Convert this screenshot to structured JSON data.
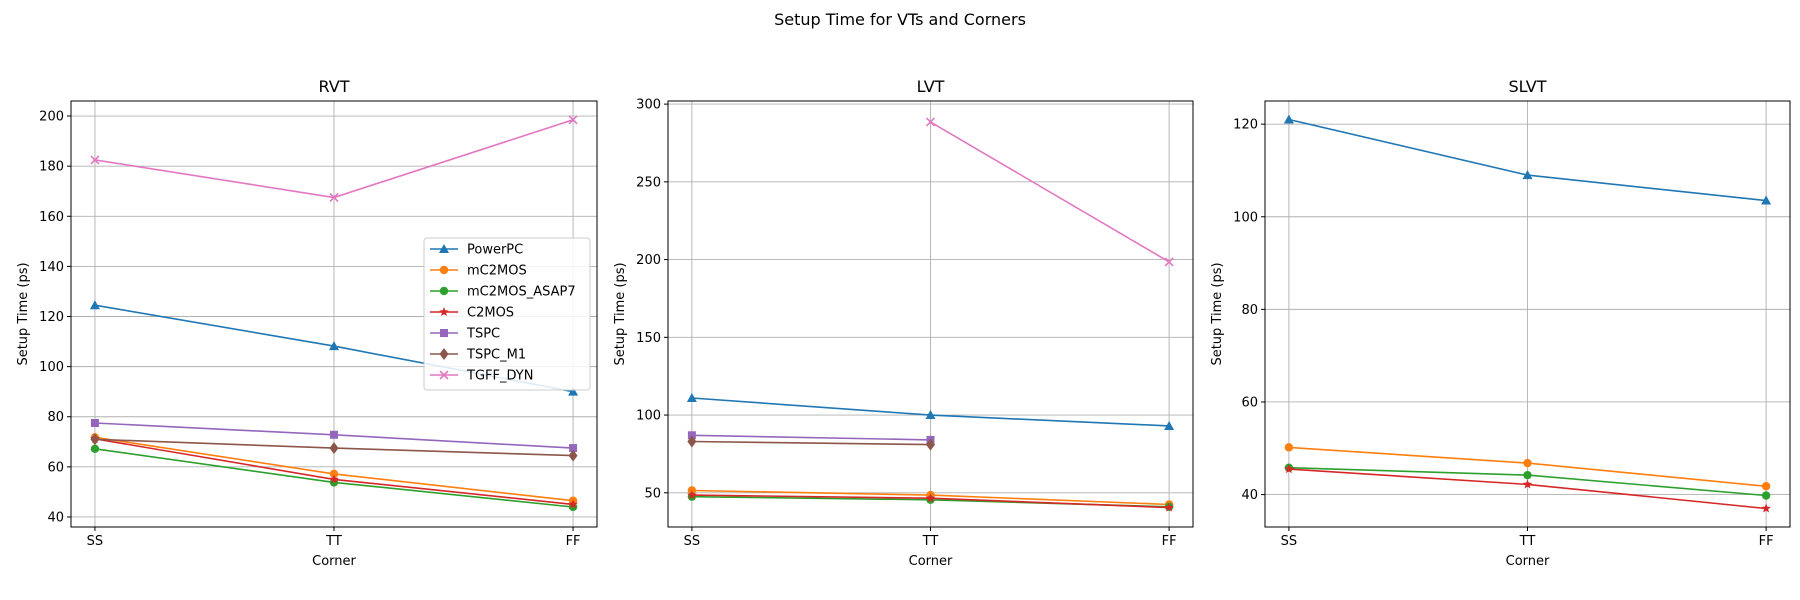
{
  "figure_title": "Setup Time for VTs and Corners",
  "series_styles": [
    {
      "name": "PowerPC",
      "color": "#1f77b4",
      "marker": "triangle"
    },
    {
      "name": "mC2MOS",
      "color": "#ff7f0e",
      "marker": "circle"
    },
    {
      "name": "mC2MOS_ASAP7",
      "color": "#2ca02c",
      "marker": "circle"
    },
    {
      "name": "C2MOS",
      "color": "#d62728",
      "marker": "star"
    },
    {
      "name": "TSPC",
      "color": "#9467bd",
      "marker": "square"
    },
    {
      "name": "TSPC_M1",
      "color": "#8c564b",
      "marker": "diamond"
    },
    {
      "name": "TGFF_DYN",
      "color": "#e377c2",
      "marker": "x"
    }
  ],
  "chart_data": [
    {
      "type": "line",
      "title": "RVT",
      "xlabel": "Corner",
      "ylabel": "Setup Time (ps)",
      "categories": [
        "SS",
        "TT",
        "FF"
      ],
      "ylim": [
        36,
        206
      ],
      "yticks": [
        40,
        60,
        80,
        100,
        120,
        140,
        160,
        180,
        200
      ],
      "grid": true,
      "legend": "center-right",
      "series": [
        {
          "name": "PowerPC",
          "values": [
            124.5,
            108.2,
            90.0
          ]
        },
        {
          "name": "mC2MOS",
          "values": [
            71.8,
            57.2,
            46.5
          ]
        },
        {
          "name": "mC2MOS_ASAP7",
          "values": [
            67.2,
            53.8,
            44.0
          ]
        },
        {
          "name": "C2MOS",
          "values": [
            71.2,
            55.0,
            45.0
          ]
        },
        {
          "name": "TSPC",
          "values": [
            77.5,
            72.8,
            67.5
          ]
        },
        {
          "name": "TSPC_M1",
          "values": [
            71.0,
            67.5,
            64.5
          ]
        },
        {
          "name": "TGFF_DYN",
          "values": [
            182.5,
            167.5,
            198.5
          ]
        }
      ]
    },
    {
      "type": "line",
      "title": "LVT",
      "xlabel": "Corner",
      "ylabel": "Setup Time (ps)",
      "categories": [
        "SS",
        "TT",
        "FF"
      ],
      "ylim": [
        28,
        302
      ],
      "yticks": [
        50,
        100,
        150,
        200,
        250,
        300
      ],
      "grid": true,
      "series": [
        {
          "name": "PowerPC",
          "values": [
            111.0,
            100.0,
            93.0
          ]
        },
        {
          "name": "mC2MOS",
          "values": [
            51.5,
            48.5,
            42.5
          ]
        },
        {
          "name": "mC2MOS_ASAP7",
          "values": [
            47.5,
            45.5,
            41.0
          ]
        },
        {
          "name": "C2MOS",
          "values": [
            48.5,
            46.5,
            40.5
          ]
        },
        {
          "name": "TSPC",
          "values": [
            87.0,
            84.0,
            null
          ]
        },
        {
          "name": "TSPC_M1",
          "values": [
            83.0,
            81.0,
            null
          ]
        },
        {
          "name": "TGFF_DYN",
          "values": [
            null,
            288.5,
            198.5
          ]
        }
      ]
    },
    {
      "type": "line",
      "title": "SLVT",
      "xlabel": "Corner",
      "ylabel": "Setup Time (ps)",
      "categories": [
        "SS",
        "TT",
        "FF"
      ],
      "ylim": [
        33,
        125
      ],
      "yticks": [
        40,
        60,
        80,
        100,
        120
      ],
      "grid": true,
      "series": [
        {
          "name": "PowerPC",
          "values": [
            121.0,
            109.0,
            103.5
          ]
        },
        {
          "name": "mC2MOS",
          "values": [
            50.2,
            46.8,
            41.8
          ]
        },
        {
          "name": "mC2MOS_ASAP7",
          "values": [
            45.8,
            44.2,
            39.8
          ]
        },
        {
          "name": "C2MOS",
          "values": [
            45.5,
            42.2,
            37.0
          ]
        }
      ]
    }
  ]
}
